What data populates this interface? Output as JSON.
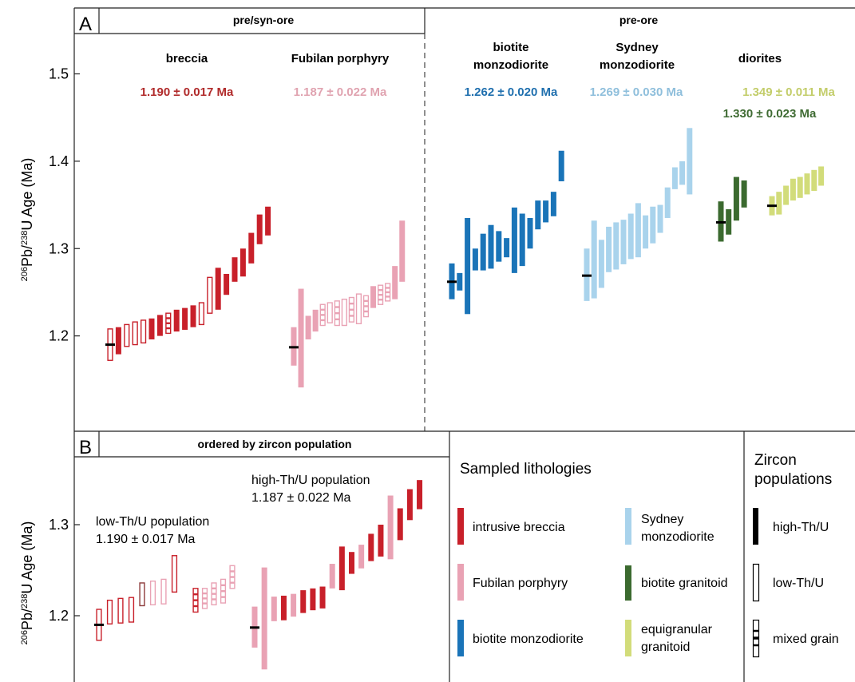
{
  "colors": {
    "breccia": "#c8202a",
    "breccia_dark": "#8c3a3a",
    "fubilan": "#e9a2b4",
    "fubilan_dark": "#b0606e",
    "biotite_monzodiorite": "#1a74b8",
    "sydney": "#a9d3ec",
    "diorite_dark": "#3b6a2f",
    "diorite_light": "#d2dc7a",
    "mean_bar": "#000000"
  },
  "panel_a": {
    "label": "A",
    "header_left": "pre/syn-ore",
    "header_right": "pre-ore",
    "groups": [
      {
        "name": "breccia",
        "age": "1.190 ± 0.017 Ma"
      },
      {
        "name": "Fubilan porphyry",
        "age": "1.187 ± 0.022 Ma"
      },
      {
        "name_line1": "biotite",
        "name_line2": "monzodiorite",
        "age": "1.262 ± 0.020 Ma"
      },
      {
        "name_line1": "Sydney",
        "name_line2": "monzodiorite",
        "age": "1.269 ± 0.030 Ma"
      },
      {
        "name": "diorites",
        "age_light": "1.349 ± 0.011 Ma",
        "age_dark": "1.330 ± 0.023 Ma"
      }
    ]
  },
  "panel_b": {
    "label": "B",
    "header": "ordered by zircon population",
    "low_label": "low-Th/U population",
    "low_age": "1.190 ± 0.017 Ma",
    "high_label": "high-Th/U population",
    "high_age": "1.187 ± 0.022 Ma"
  },
  "legend": {
    "title": "Sampled lithologies",
    "items": [
      {
        "label": "intrusive breccia"
      },
      {
        "label": "Fubilan porphyry"
      },
      {
        "label": "biotite monzodiorite"
      },
      {
        "label_line1": "Sydney",
        "label_line2": "monzodiorite"
      },
      {
        "label": "biotite granitoid"
      },
      {
        "label_line1": "equigranular",
        "label_line2": "granitoid"
      }
    ]
  },
  "zircon_legend": {
    "title_line1": "Zircon",
    "title_line2": "populations",
    "items": [
      {
        "label": "high-Th/U"
      },
      {
        "label": "low-Th/U"
      },
      {
        "label": "mixed grain"
      }
    ]
  },
  "chart_data": [
    {
      "type": "scatter",
      "title": "",
      "ylabel": "206Pb/238U Age (Ma)",
      "ylim": [
        1.1,
        1.58
      ],
      "yticks": [
        1.2,
        1.3,
        1.4,
        1.5
      ],
      "grid": false,
      "series": [
        {
          "name": "breccia",
          "color": "#c8202a",
          "weighted_mean": 1.19,
          "errors": [
            {
              "lo": 1.172,
              "hi": 1.208,
              "style": "open"
            },
            {
              "lo": 1.179,
              "hi": 1.21,
              "style": "filled"
            },
            {
              "lo": 1.188,
              "hi": 1.213,
              "style": "open"
            },
            {
              "lo": 1.19,
              "hi": 1.216,
              "style": "open"
            },
            {
              "lo": 1.192,
              "hi": 1.218,
              "style": "open"
            },
            {
              "lo": 1.196,
              "hi": 1.22,
              "style": "filled"
            },
            {
              "lo": 1.2,
              "hi": 1.224,
              "style": "filled"
            },
            {
              "lo": 1.203,
              "hi": 1.226,
              "style": "mixed"
            },
            {
              "lo": 1.205,
              "hi": 1.23,
              "style": "filled"
            },
            {
              "lo": 1.207,
              "hi": 1.232,
              "style": "filled"
            },
            {
              "lo": 1.21,
              "hi": 1.235,
              "style": "filled"
            },
            {
              "lo": 1.213,
              "hi": 1.238,
              "style": "open"
            },
            {
              "lo": 1.226,
              "hi": 1.267,
              "style": "open"
            },
            {
              "lo": 1.23,
              "hi": 1.278,
              "style": "filled"
            },
            {
              "lo": 1.247,
              "hi": 1.271,
              "style": "filled"
            },
            {
              "lo": 1.262,
              "hi": 1.29,
              "style": "filled"
            },
            {
              "lo": 1.268,
              "hi": 1.3,
              "style": "filled"
            },
            {
              "lo": 1.283,
              "hi": 1.318,
              "style": "filled"
            },
            {
              "lo": 1.305,
              "hi": 1.339,
              "style": "filled"
            },
            {
              "lo": 1.315,
              "hi": 1.348,
              "style": "filled"
            }
          ]
        },
        {
          "name": "Fubilan porphyry",
          "color": "#e9a2b4",
          "weighted_mean": 1.187,
          "errors": [
            {
              "lo": 1.166,
              "hi": 1.21,
              "style": "filled"
            },
            {
              "lo": 1.141,
              "hi": 1.254,
              "style": "filled"
            },
            {
              "lo": 1.196,
              "hi": 1.223,
              "style": "filled"
            },
            {
              "lo": 1.205,
              "hi": 1.23,
              "style": "filled"
            },
            {
              "lo": 1.212,
              "hi": 1.236,
              "style": "mixed"
            },
            {
              "lo": 1.215,
              "hi": 1.238,
              "style": "open"
            },
            {
              "lo": 1.212,
              "hi": 1.24,
              "style": "mixed"
            },
            {
              "lo": 1.212,
              "hi": 1.242,
              "style": "open"
            },
            {
              "lo": 1.216,
              "hi": 1.244,
              "style": "mixed"
            },
            {
              "lo": 1.214,
              "hi": 1.248,
              "style": "open"
            },
            {
              "lo": 1.222,
              "hi": 1.246,
              "style": "mixed"
            },
            {
              "lo": 1.232,
              "hi": 1.257,
              "style": "filled"
            },
            {
              "lo": 1.236,
              "hi": 1.258,
              "style": "mixed"
            },
            {
              "lo": 1.24,
              "hi": 1.26,
              "style": "mixed"
            },
            {
              "lo": 1.242,
              "hi": 1.28,
              "style": "filled"
            },
            {
              "lo": 1.262,
              "hi": 1.332,
              "style": "filled"
            }
          ]
        },
        {
          "name": "biotite monzodiorite",
          "color": "#1a74b8",
          "weighted_mean": 1.262,
          "errors": [
            {
              "lo": 1.242,
              "hi": 1.283,
              "style": "filled"
            },
            {
              "lo": 1.252,
              "hi": 1.272,
              "style": "filled"
            },
            {
              "lo": 1.225,
              "hi": 1.335,
              "style": "filled"
            },
            {
              "lo": 1.275,
              "hi": 1.3,
              "style": "filled"
            },
            {
              "lo": 1.275,
              "hi": 1.317,
              "style": "filled"
            },
            {
              "lo": 1.277,
              "hi": 1.327,
              "style": "filled"
            },
            {
              "lo": 1.285,
              "hi": 1.32,
              "style": "filled"
            },
            {
              "lo": 1.29,
              "hi": 1.312,
              "style": "filled"
            },
            {
              "lo": 1.272,
              "hi": 1.347,
              "style": "filled"
            },
            {
              "lo": 1.28,
              "hi": 1.34,
              "style": "filled"
            },
            {
              "lo": 1.3,
              "hi": 1.335,
              "style": "filled"
            },
            {
              "lo": 1.322,
              "hi": 1.355,
              "style": "filled"
            },
            {
              "lo": 1.33,
              "hi": 1.355,
              "style": "filled"
            },
            {
              "lo": 1.337,
              "hi": 1.365,
              "style": "filled"
            },
            {
              "lo": 1.377,
              "hi": 1.412,
              "style": "filled"
            }
          ]
        },
        {
          "name": "Sydney monzodiorite",
          "color": "#a9d3ec",
          "weighted_mean": 1.269,
          "errors": [
            {
              "lo": 1.24,
              "hi": 1.3,
              "style": "filled"
            },
            {
              "lo": 1.243,
              "hi": 1.332,
              "style": "filled"
            },
            {
              "lo": 1.255,
              "hi": 1.31,
              "style": "filled"
            },
            {
              "lo": 1.273,
              "hi": 1.325,
              "style": "filled"
            },
            {
              "lo": 1.276,
              "hi": 1.33,
              "style": "filled"
            },
            {
              "lo": 1.282,
              "hi": 1.333,
              "style": "filled"
            },
            {
              "lo": 1.288,
              "hi": 1.34,
              "style": "filled"
            },
            {
              "lo": 1.29,
              "hi": 1.352,
              "style": "filled"
            },
            {
              "lo": 1.3,
              "hi": 1.338,
              "style": "filled"
            },
            {
              "lo": 1.306,
              "hi": 1.348,
              "style": "filled"
            },
            {
              "lo": 1.318,
              "hi": 1.35,
              "style": "filled"
            },
            {
              "lo": 1.335,
              "hi": 1.37,
              "style": "filled"
            },
            {
              "lo": 1.368,
              "hi": 1.393,
              "style": "filled"
            },
            {
              "lo": 1.373,
              "hi": 1.4,
              "style": "filled"
            },
            {
              "lo": 1.362,
              "hi": 1.438,
              "style": "filled"
            }
          ]
        },
        {
          "name": "biotite granitoid",
          "color": "#3b6a2f",
          "weighted_mean": 1.33,
          "errors": [
            {
              "lo": 1.308,
              "hi": 1.354,
              "style": "filled"
            },
            {
              "lo": 1.316,
              "hi": 1.345,
              "style": "filled"
            },
            {
              "lo": 1.332,
              "hi": 1.382,
              "style": "filled"
            },
            {
              "lo": 1.347,
              "hi": 1.378,
              "style": "filled"
            }
          ]
        },
        {
          "name": "equigranular granitoid",
          "color": "#d2dc7a",
          "weighted_mean": 1.349,
          "errors": [
            {
              "lo": 1.338,
              "hi": 1.36,
              "style": "filled"
            },
            {
              "lo": 1.339,
              "hi": 1.365,
              "style": "filled"
            },
            {
              "lo": 1.35,
              "hi": 1.372,
              "style": "filled"
            },
            {
              "lo": 1.355,
              "hi": 1.38,
              "style": "filled"
            },
            {
              "lo": 1.358,
              "hi": 1.382,
              "style": "filled"
            },
            {
              "lo": 1.362,
              "hi": 1.386,
              "style": "filled"
            },
            {
              "lo": 1.366,
              "hi": 1.39,
              "style": "filled"
            },
            {
              "lo": 1.372,
              "hi": 1.394,
              "style": "filled"
            }
          ]
        }
      ]
    },
    {
      "type": "scatter",
      "title": "ordered by zircon population",
      "ylabel": "206Pb/238U Age (Ma)",
      "ylim": [
        1.135,
        1.36
      ],
      "yticks": [
        1.2,
        1.3
      ],
      "grid": false,
      "series": [
        {
          "name": "low-Th/U population",
          "weighted_mean": 1.19,
          "errors": [
            {
              "lo": 1.173,
              "hi": 1.207,
              "style": "open",
              "color": "#c8202a"
            },
            {
              "lo": 1.191,
              "hi": 1.217,
              "style": "open",
              "color": "#c8202a"
            },
            {
              "lo": 1.192,
              "hi": 1.219,
              "style": "open",
              "color": "#c8202a"
            },
            {
              "lo": 1.193,
              "hi": 1.22,
              "style": "open",
              "color": "#c8202a"
            },
            {
              "lo": 1.211,
              "hi": 1.236,
              "style": "open",
              "color": "#8c3a3a"
            },
            {
              "lo": 1.212,
              "hi": 1.238,
              "style": "open",
              "color": "#e9a2b4"
            },
            {
              "lo": 1.213,
              "hi": 1.24,
              "style": "open",
              "color": "#e9a2b4"
            },
            {
              "lo": 1.226,
              "hi": 1.266,
              "style": "open",
              "color": "#c8202a"
            },
            {
              "lo": 1.204,
              "hi": 1.23,
              "style": "mixed",
              "color": "#c8202a"
            },
            {
              "lo": 1.208,
              "hi": 1.23,
              "style": "mixed",
              "color": "#e9a2b4"
            },
            {
              "lo": 1.212,
              "hi": 1.236,
              "style": "mixed",
              "color": "#e9a2b4"
            },
            {
              "lo": 1.214,
              "hi": 1.24,
              "style": "mixed",
              "color": "#e9a2b4"
            },
            {
              "lo": 1.23,
              "hi": 1.255,
              "style": "mixed",
              "color": "#e9a2b4"
            }
          ]
        },
        {
          "name": "high-Th/U population",
          "weighted_mean": 1.187,
          "errors": [
            {
              "lo": 1.165,
              "hi": 1.21,
              "style": "filled",
              "color": "#e9a2b4"
            },
            {
              "lo": 1.141,
              "hi": 1.253,
              "style": "filled",
              "color": "#e9a2b4"
            },
            {
              "lo": 1.194,
              "hi": 1.221,
              "style": "filled",
              "color": "#e9a2b4"
            },
            {
              "lo": 1.195,
              "hi": 1.222,
              "style": "filled",
              "color": "#c8202a"
            },
            {
              "lo": 1.199,
              "hi": 1.224,
              "style": "filled",
              "color": "#e9a2b4"
            },
            {
              "lo": 1.203,
              "hi": 1.228,
              "style": "filled",
              "color": "#c8202a"
            },
            {
              "lo": 1.206,
              "hi": 1.23,
              "style": "filled",
              "color": "#c8202a"
            },
            {
              "lo": 1.208,
              "hi": 1.232,
              "style": "filled",
              "color": "#c8202a"
            },
            {
              "lo": 1.23,
              "hi": 1.257,
              "style": "filled",
              "color": "#e9a2b4"
            },
            {
              "lo": 1.228,
              "hi": 1.276,
              "style": "filled",
              "color": "#c8202a"
            },
            {
              "lo": 1.246,
              "hi": 1.27,
              "style": "filled",
              "color": "#c8202a"
            },
            {
              "lo": 1.252,
              "hi": 1.278,
              "style": "filled",
              "color": "#e9a2b4"
            },
            {
              "lo": 1.26,
              "hi": 1.29,
              "style": "filled",
              "color": "#c8202a"
            },
            {
              "lo": 1.265,
              "hi": 1.3,
              "style": "filled",
              "color": "#c8202a"
            },
            {
              "lo": 1.262,
              "hi": 1.332,
              "style": "filled",
              "color": "#e9a2b4"
            },
            {
              "lo": 1.283,
              "hi": 1.318,
              "style": "filled",
              "color": "#c8202a"
            },
            {
              "lo": 1.305,
              "hi": 1.339,
              "style": "filled",
              "color": "#c8202a"
            },
            {
              "lo": 1.317,
              "hi": 1.349,
              "style": "filled",
              "color": "#c8202a"
            }
          ]
        }
      ]
    }
  ]
}
